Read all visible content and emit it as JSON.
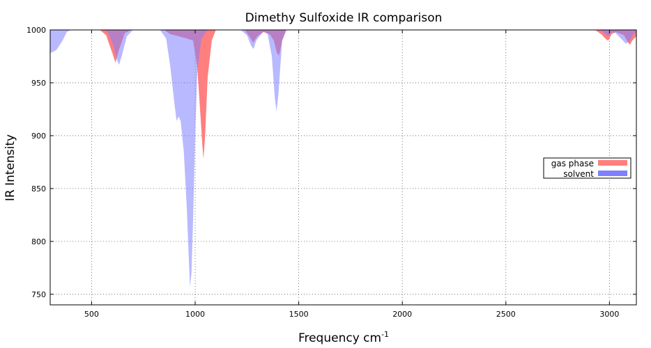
{
  "chart_data": {
    "type": "area",
    "title": "Dimethy Sulfoxide IR comparison",
    "xlabel": "Frequency cm",
    "xlabel_superscript": "-1",
    "ylabel": "IR Intensity",
    "xlim": [
      300,
      3130
    ],
    "ylim": [
      740,
      1000
    ],
    "x_ticks": [
      500,
      1000,
      1500,
      2000,
      2500,
      3000
    ],
    "y_ticks": [
      750,
      800,
      850,
      900,
      950,
      1000
    ],
    "grid": true,
    "legend_position": "right",
    "series": [
      {
        "name": "gas phase",
        "color": "#ff7f7f",
        "points": [
          [
            300,
            1000
          ],
          [
            540,
            1000
          ],
          [
            570,
            995
          ],
          [
            600,
            978
          ],
          [
            615,
            969
          ],
          [
            630,
            980
          ],
          [
            660,
            997
          ],
          [
            690,
            1000
          ],
          [
            850,
            1000
          ],
          [
            880,
            996
          ],
          [
            920,
            994
          ],
          [
            960,
            992
          ],
          [
            990,
            990
          ],
          [
            1010,
            965
          ],
          [
            1025,
            920
          ],
          [
            1035,
            890
          ],
          [
            1040,
            878
          ],
          [
            1048,
            900
          ],
          [
            1060,
            955
          ],
          [
            1080,
            990
          ],
          [
            1100,
            1000
          ],
          [
            1240,
            1000
          ],
          [
            1265,
            993
          ],
          [
            1280,
            988
          ],
          [
            1300,
            994
          ],
          [
            1330,
            998
          ],
          [
            1360,
            996
          ],
          [
            1380,
            990
          ],
          [
            1395,
            978
          ],
          [
            1405,
            976
          ],
          [
            1420,
            990
          ],
          [
            1440,
            1000
          ],
          [
            2930,
            1000
          ],
          [
            2960,
            996
          ],
          [
            2985,
            991
          ],
          [
            2995,
            990
          ],
          [
            3010,
            996
          ],
          [
            3030,
            998
          ],
          [
            3070,
            995
          ],
          [
            3090,
            988
          ],
          [
            3100,
            986
          ],
          [
            3110,
            990
          ],
          [
            3130,
            994
          ]
        ]
      },
      {
        "name": "solvent",
        "color": "#7f7fff",
        "points": [
          [
            300,
            978
          ],
          [
            330,
            981
          ],
          [
            360,
            990
          ],
          [
            380,
            998
          ],
          [
            400,
            1000
          ],
          [
            560,
            1000
          ],
          [
            580,
            997
          ],
          [
            605,
            985
          ],
          [
            620,
            973
          ],
          [
            632,
            967
          ],
          [
            645,
            975
          ],
          [
            670,
            994
          ],
          [
            700,
            1000
          ],
          [
            830,
            1000
          ],
          [
            860,
            992
          ],
          [
            880,
            965
          ],
          [
            900,
            930
          ],
          [
            910,
            914
          ],
          [
            920,
            918
          ],
          [
            930,
            914
          ],
          [
            945,
            885
          ],
          [
            960,
            830
          ],
          [
            970,
            780
          ],
          [
            975,
            757
          ],
          [
            982,
            770
          ],
          [
            990,
            820
          ],
          [
            1000,
            900
          ],
          [
            1010,
            960
          ],
          [
            1030,
            992
          ],
          [
            1060,
            1000
          ],
          [
            1220,
            1000
          ],
          [
            1250,
            995
          ],
          [
            1270,
            985
          ],
          [
            1282,
            982
          ],
          [
            1295,
            990
          ],
          [
            1330,
            999
          ],
          [
            1350,
            996
          ],
          [
            1370,
            975
          ],
          [
            1385,
            935
          ],
          [
            1393,
            923
          ],
          [
            1402,
            940
          ],
          [
            1420,
            990
          ],
          [
            1440,
            1000
          ],
          [
            2950,
            1000
          ],
          [
            2975,
            997
          ],
          [
            2995,
            994
          ],
          [
            3010,
            998
          ],
          [
            3030,
            997
          ],
          [
            3050,
            993
          ],
          [
            3080,
            987
          ],
          [
            3100,
            990
          ],
          [
            3115,
            996
          ],
          [
            3130,
            998
          ]
        ]
      }
    ]
  }
}
